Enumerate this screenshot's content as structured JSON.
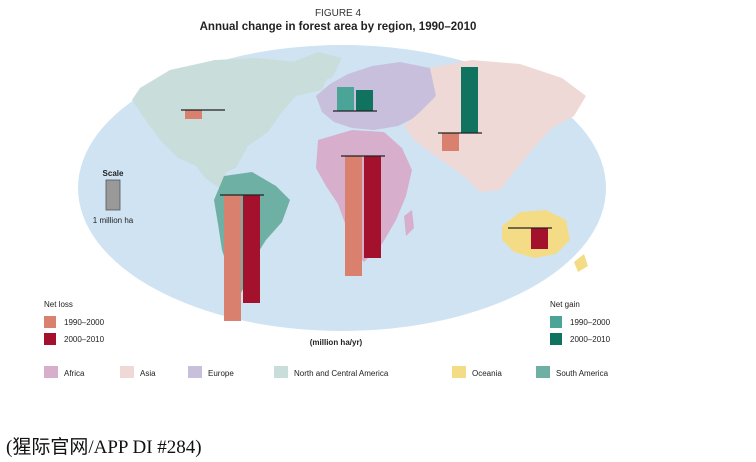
{
  "figure_label": "FIGURE 4",
  "caption": "(猩际官网/APP DI #284)",
  "colors": {
    "ocean": "#cfe3f3",
    "africa": "#d8aecd",
    "asia": "#efd9d6",
    "europe": "#c7bfdc",
    "north_central_america": "#c9dedb",
    "oceania": "#f4dc86",
    "south_america": "#6fb0a4",
    "loss_1990_2000": "#d9806f",
    "loss_2000_2010": "#a3112c",
    "gain_1990_2000": "#4aa497",
    "gain_2000_2010": "#0f7360",
    "baseline": "#222222",
    "scale_bar": "#999999"
  },
  "chart_data": {
    "type": "bar",
    "title": "Annual change in forest area by region, 1990–2010",
    "unit_label": "(million ha/yr)",
    "scale": {
      "label": "Scale",
      "value_label": "1 million ha",
      "value": 1
    },
    "legend": {
      "loss_title": "Net loss",
      "gain_title": "Net gain",
      "loss_entries": [
        "1990–2000",
        "2000–2010"
      ],
      "gain_entries": [
        "1990–2000",
        "2000–2010"
      ]
    },
    "region_legend": [
      "Africa",
      "Asia",
      "Europe",
      "North and Central America",
      "Oceania",
      "South America"
    ],
    "series_periods": [
      "1990–2000",
      "2000–2010"
    ],
    "regions": [
      {
        "name": "North and Central America",
        "values": [
          -0.3,
          -0.0
        ]
      },
      {
        "name": "Europe",
        "values": [
          0.8,
          0.7
        ]
      },
      {
        "name": "Asia",
        "values": [
          -0.6,
          2.2
        ]
      },
      {
        "name": "Africa",
        "values": [
          -4.0,
          -3.4
        ]
      },
      {
        "name": "South America",
        "values": [
          -4.2,
          -3.6
        ]
      },
      {
        "name": "Oceania",
        "values": [
          -0.0,
          -0.7
        ]
      }
    ]
  }
}
